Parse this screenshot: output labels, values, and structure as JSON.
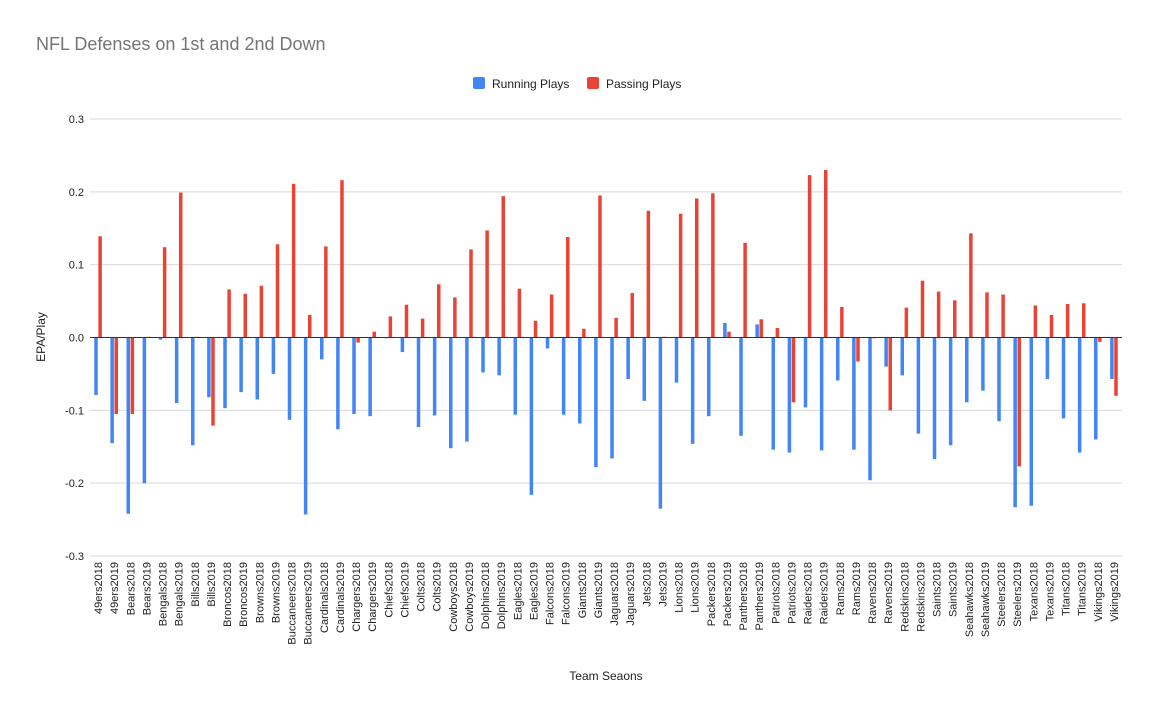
{
  "chart_data": {
    "type": "bar",
    "title": "NFL Defenses on 1st and 2nd Down",
    "xlabel": "Team Seaons",
    "ylabel": "EPA/Play",
    "ylim": [
      -0.3,
      0.3
    ],
    "yticks": [
      "-0.3",
      "-0.2",
      "-0.1",
      "0.0",
      "0.1",
      "0.2",
      "0.3"
    ],
    "grid": true,
    "legend_position": "top",
    "categories": [
      "49ers2018",
      "49ers2019",
      "Bears2018",
      "Bears2019",
      "Bengals2018",
      "Bengals2019",
      "Bills2018",
      "Bills2019",
      "Broncos2018",
      "Broncos2019",
      "Browns2018",
      "Browns2019",
      "Buccaneers2018",
      "Buccaneers2019",
      "Cardinals2018",
      "Cardinals2019",
      "Chargers2018",
      "Chargers2019",
      "Chiefs2018",
      "Chiefs2019",
      "Colts2018",
      "Colts2019",
      "Cowboys2018",
      "Cowboys2019",
      "Dolphins2018",
      "Dolphins2019",
      "Eagles2018",
      "Eagles2019",
      "Falcons2018",
      "Falcons2019",
      "Giants2018",
      "Giants2019",
      "Jaguars2018",
      "Jaguars2019",
      "Jets2018",
      "Jets2019",
      "Lions2018",
      "Lions2019",
      "Packers2018",
      "Packers2019",
      "Panthers2018",
      "Panthers2019",
      "Patriots2018",
      "Patriots2019",
      "Raiders2018",
      "Raiders2019",
      "Rams2018",
      "Rams2019",
      "Ravens2018",
      "Ravens2019",
      "Redskins2018",
      "Redskins2019",
      "Saints2018",
      "Saints2019",
      "Seahawks2018",
      "Seahawks2019",
      "Steelers2018",
      "Steelers2019",
      "Texans2018",
      "Texans2019",
      "Titans2018",
      "Titans2019",
      "Vikings2018",
      "Vikings2019"
    ],
    "series": [
      {
        "name": "Running Plays",
        "color": "#4285f4",
        "values": [
          -0.079,
          -0.145,
          -0.242,
          -0.2,
          -0.003,
          -0.09,
          -0.148,
          -0.082,
          -0.097,
          -0.075,
          -0.085,
          -0.05,
          -0.113,
          -0.243,
          -0.03,
          -0.126,
          -0.105,
          -0.108,
          0.0,
          -0.02,
          -0.123,
          -0.107,
          -0.152,
          -0.143,
          -0.048,
          -0.052,
          -0.106,
          -0.216,
          -0.015,
          -0.106,
          -0.118,
          -0.178,
          -0.166,
          -0.057,
          -0.087,
          -0.235,
          -0.062,
          -0.146,
          -0.108,
          0.02,
          -0.135,
          0.018,
          -0.154,
          -0.158,
          -0.096,
          -0.155,
          -0.059,
          -0.154,
          -0.196,
          -0.04,
          -0.052,
          -0.132,
          -0.167,
          -0.148,
          -0.089,
          -0.073,
          -0.115,
          -0.233,
          -0.231,
          -0.057,
          -0.111,
          -0.158,
          -0.14,
          -0.057
        ]
      },
      {
        "name": "Passing Plays",
        "color": "#ea4335",
        "values": [
          0.139,
          -0.105,
          -0.105,
          0.001,
          0.124,
          0.199,
          0.001,
          -0.121,
          0.066,
          0.06,
          0.071,
          0.128,
          0.211,
          0.031,
          0.125,
          0.216,
          -0.007,
          0.008,
          0.029,
          0.045,
          0.026,
          0.073,
          0.055,
          0.121,
          0.147,
          0.194,
          0.067,
          0.023,
          0.059,
          0.138,
          0.012,
          0.195,
          0.027,
          0.061,
          0.174,
          0.001,
          0.17,
          0.191,
          0.198,
          0.008,
          0.13,
          0.025,
          0.013,
          -0.089,
          0.223,
          0.23,
          0.042,
          -0.033,
          0.0,
          -0.1,
          0.041,
          0.078,
          0.063,
          0.051,
          0.143,
          0.062,
          0.059,
          -0.177,
          0.044,
          0.031,
          0.046,
          0.047,
          -0.006,
          -0.08
        ]
      }
    ]
  }
}
